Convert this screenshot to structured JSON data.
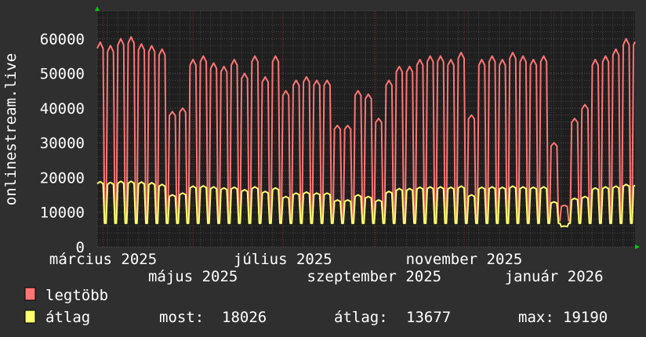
{
  "chart_data": {
    "type": "line",
    "ylabel": "onlinestream.live",
    "ylim": [
      0,
      68000
    ],
    "yticks": [
      "0",
      "10000",
      "20000",
      "30000",
      "40000",
      "50000",
      "60000"
    ],
    "ytick_values": [
      0,
      10000,
      20000,
      30000,
      40000,
      50000,
      60000
    ],
    "x_range": [
      "2025-02-25",
      "2026-02-25"
    ],
    "xticks": [
      {
        "date": "2025-03-01",
        "label": "március 2025"
      },
      {
        "date": "2025-05-01",
        "label": "május 2025"
      },
      {
        "date": "2025-07-01",
        "label": "július 2025"
      },
      {
        "date": "2025-09-01",
        "label": "szeptember 2025"
      },
      {
        "date": "2025-11-01",
        "label": "november 2025"
      },
      {
        "date": "2026-01-01",
        "label": "január 2026"
      }
    ],
    "grid": true,
    "series": [
      {
        "name": "legtöbb",
        "color": "#ff7575",
        "weekday_levels": [
          59000,
          58000,
          60000,
          60500,
          58500,
          58000,
          57000,
          39000,
          40000,
          54000,
          55000,
          53000,
          52000,
          54000,
          50000,
          55000,
          49000,
          55000,
          45000,
          48000,
          49000,
          48000,
          48000,
          35000,
          35000,
          45000,
          44000,
          37000,
          48000,
          52000,
          52000,
          54000,
          55000,
          55000,
          54000,
          56000,
          38000,
          54000,
          55000,
          54000,
          56000,
          55000,
          54000,
          55000,
          30000,
          12000,
          37000,
          41000,
          54000,
          55000,
          57000,
          60000
        ],
        "weekend_level": 7500
      },
      {
        "name": "átlag",
        "color": "#ffff70",
        "weekday_levels": [
          18800,
          18600,
          18900,
          18900,
          18700,
          18500,
          18000,
          15000,
          15500,
          17500,
          17600,
          17300,
          17000,
          17200,
          16500,
          17300,
          16000,
          17000,
          14500,
          15500,
          15800,
          15500,
          15500,
          13500,
          13500,
          15000,
          14500,
          13500,
          16000,
          16800,
          16800,
          17200,
          17300,
          17300,
          17200,
          17500,
          15000,
          17200,
          17300,
          17200,
          17500,
          17300,
          17200,
          17300,
          13000,
          6000,
          14000,
          14500,
          17000,
          17300,
          17500,
          18000
        ],
        "weekend_level": 6800
      }
    ],
    "legend": {
      "position": "bottom-left",
      "max_label": "legtöbb",
      "avg_label": "átlag",
      "now_label": "most:",
      "now_value": "18026",
      "avg_stat_label": "átlag:",
      "avg_stat_value": "13677",
      "max_stat_label": "max:",
      "max_stat_value": "19190"
    },
    "colors": {
      "background": "#2f2f2f",
      "plot": "#1f1f1f",
      "grid": "#4a4a4a",
      "major_grid": "#7a2e2e",
      "arrow": "#00cc00"
    }
  }
}
